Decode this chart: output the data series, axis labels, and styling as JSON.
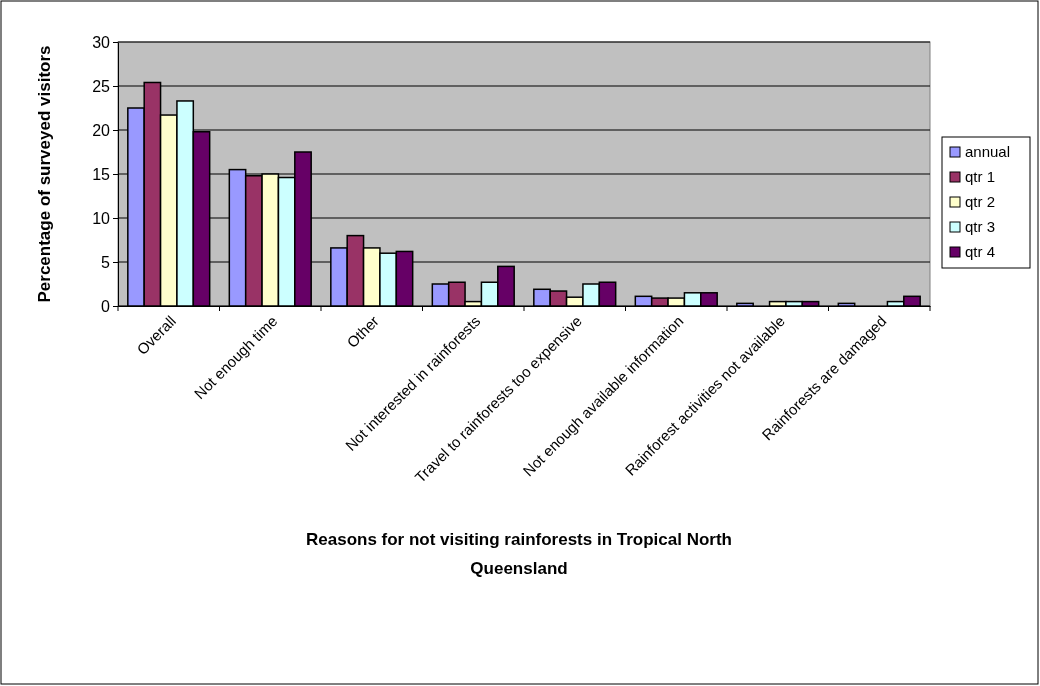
{
  "chart_data": {
    "type": "bar",
    "xlabel": "Reasons for not visiting rainforests in Tropical North Queensland",
    "ylabel": "Percentage of surveyed visitors",
    "categories": [
      "Overall",
      "Not enough time",
      "Other",
      "Not interested in rainforests",
      "Travel to rainforests too expensive",
      "Not enough available information",
      "Rainforest activities not available",
      "Rainforests are damaged"
    ],
    "series": [
      {
        "name": "annual",
        "color": "#9999ff",
        "values": [
          22.5,
          15.5,
          6.6,
          2.5,
          1.9,
          1.1,
          0.3,
          0.3
        ]
      },
      {
        "name": "qtr 1",
        "color": "#993366",
        "values": [
          25.4,
          14.8,
          8.0,
          2.7,
          1.7,
          0.9,
          0,
          0
        ]
      },
      {
        "name": "qtr 2",
        "color": "#ffffcc",
        "values": [
          21.7,
          15.0,
          6.6,
          0.5,
          1.0,
          0.9,
          0.5,
          0
        ]
      },
      {
        "name": "qtr 3",
        "color": "#ccffff",
        "values": [
          23.3,
          14.6,
          6.0,
          2.7,
          2.5,
          1.5,
          0.5,
          0.5
        ]
      },
      {
        "name": "qtr 4",
        "color": "#660066",
        "values": [
          19.8,
          17.5,
          6.2,
          4.5,
          2.7,
          1.5,
          0.5,
          1.1
        ]
      }
    ],
    "ylim": [
      0,
      30
    ],
    "yticks": [
      0,
      5,
      10,
      15,
      20,
      25,
      30
    ],
    "grid": "y",
    "legend": "right"
  }
}
